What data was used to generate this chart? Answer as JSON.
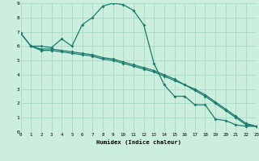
{
  "xlabel": "Humidex (Indice chaleur)",
  "bg_color": "#cceedd",
  "grid_color": "#aaddcc",
  "line_color": "#1a7a6e",
  "line1_x": [
    0,
    1,
    2,
    3,
    4,
    5,
    6,
    7,
    8,
    9,
    10,
    11,
    12,
    13,
    14,
    15,
    16,
    17,
    18,
    19,
    20,
    21,
    22,
    23
  ],
  "line1_y": [
    6.9,
    6.0,
    6.0,
    5.9,
    6.5,
    6.0,
    7.5,
    8.0,
    8.8,
    9.0,
    8.9,
    8.5,
    7.5,
    4.8,
    3.3,
    2.5,
    2.5,
    1.9,
    1.9,
    0.9,
    0.8,
    0.5,
    0.4,
    0.4
  ],
  "line2_x": [
    0,
    1,
    2,
    3,
    4,
    5,
    6,
    7,
    8,
    9,
    10,
    11,
    12,
    13,
    14,
    15,
    16,
    17,
    18,
    19,
    20,
    21,
    22,
    23
  ],
  "line2_y": [
    6.9,
    6.0,
    5.8,
    5.8,
    5.7,
    5.6,
    5.5,
    5.4,
    5.2,
    5.1,
    4.9,
    4.7,
    4.5,
    4.3,
    4.0,
    3.7,
    3.3,
    3.0,
    2.6,
    2.1,
    1.6,
    1.1,
    0.6,
    0.4
  ],
  "line3_x": [
    1,
    2,
    3,
    4,
    5,
    6,
    7,
    8,
    9,
    10,
    11,
    12,
    13,
    14,
    15,
    16,
    17,
    18,
    19,
    20,
    21,
    22,
    23
  ],
  "line3_y": [
    6.0,
    5.7,
    5.7,
    5.6,
    5.5,
    5.4,
    5.3,
    5.1,
    5.0,
    4.8,
    4.6,
    4.4,
    4.2,
    3.9,
    3.6,
    3.3,
    2.9,
    2.5,
    2.0,
    1.5,
    1.0,
    0.5,
    0.4
  ],
  "xlim": [
    0,
    23
  ],
  "ylim": [
    0,
    9
  ],
  "xticks": [
    0,
    1,
    2,
    3,
    4,
    5,
    6,
    7,
    8,
    9,
    10,
    11,
    12,
    13,
    14,
    15,
    16,
    17,
    18,
    19,
    20,
    21,
    22,
    23
  ],
  "yticks": [
    0,
    1,
    2,
    3,
    4,
    5,
    6,
    7,
    8,
    9
  ],
  "marker": "D",
  "markersize": 2.0,
  "linewidth": 0.9
}
